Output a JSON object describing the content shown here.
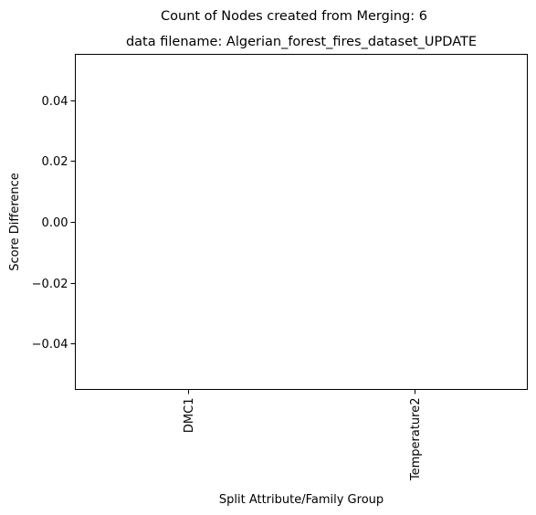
{
  "chart_data": {
    "type": "bar",
    "suptitle": "Count of Nodes created from Merging: 6",
    "title": "data filename: Algerian_forest_fires_dataset_UPDATE",
    "xlabel": "Split Attribute/Family Group",
    "ylabel": "Score Difference",
    "categories": [
      "DMC1",
      "Temperature2"
    ],
    "values": [
      0,
      0
    ],
    "ylim": [
      -0.055,
      0.055
    ],
    "yticks": [
      -0.04,
      -0.02,
      0.0,
      0.02,
      0.04
    ],
    "ytick_labels": [
      "−0.04",
      "−0.02",
      "0.00",
      "0.02",
      "0.04"
    ],
    "grid": false,
    "colors": {
      "axis": "#000000",
      "bar": "#1f77b4",
      "background": "#ffffff"
    }
  }
}
